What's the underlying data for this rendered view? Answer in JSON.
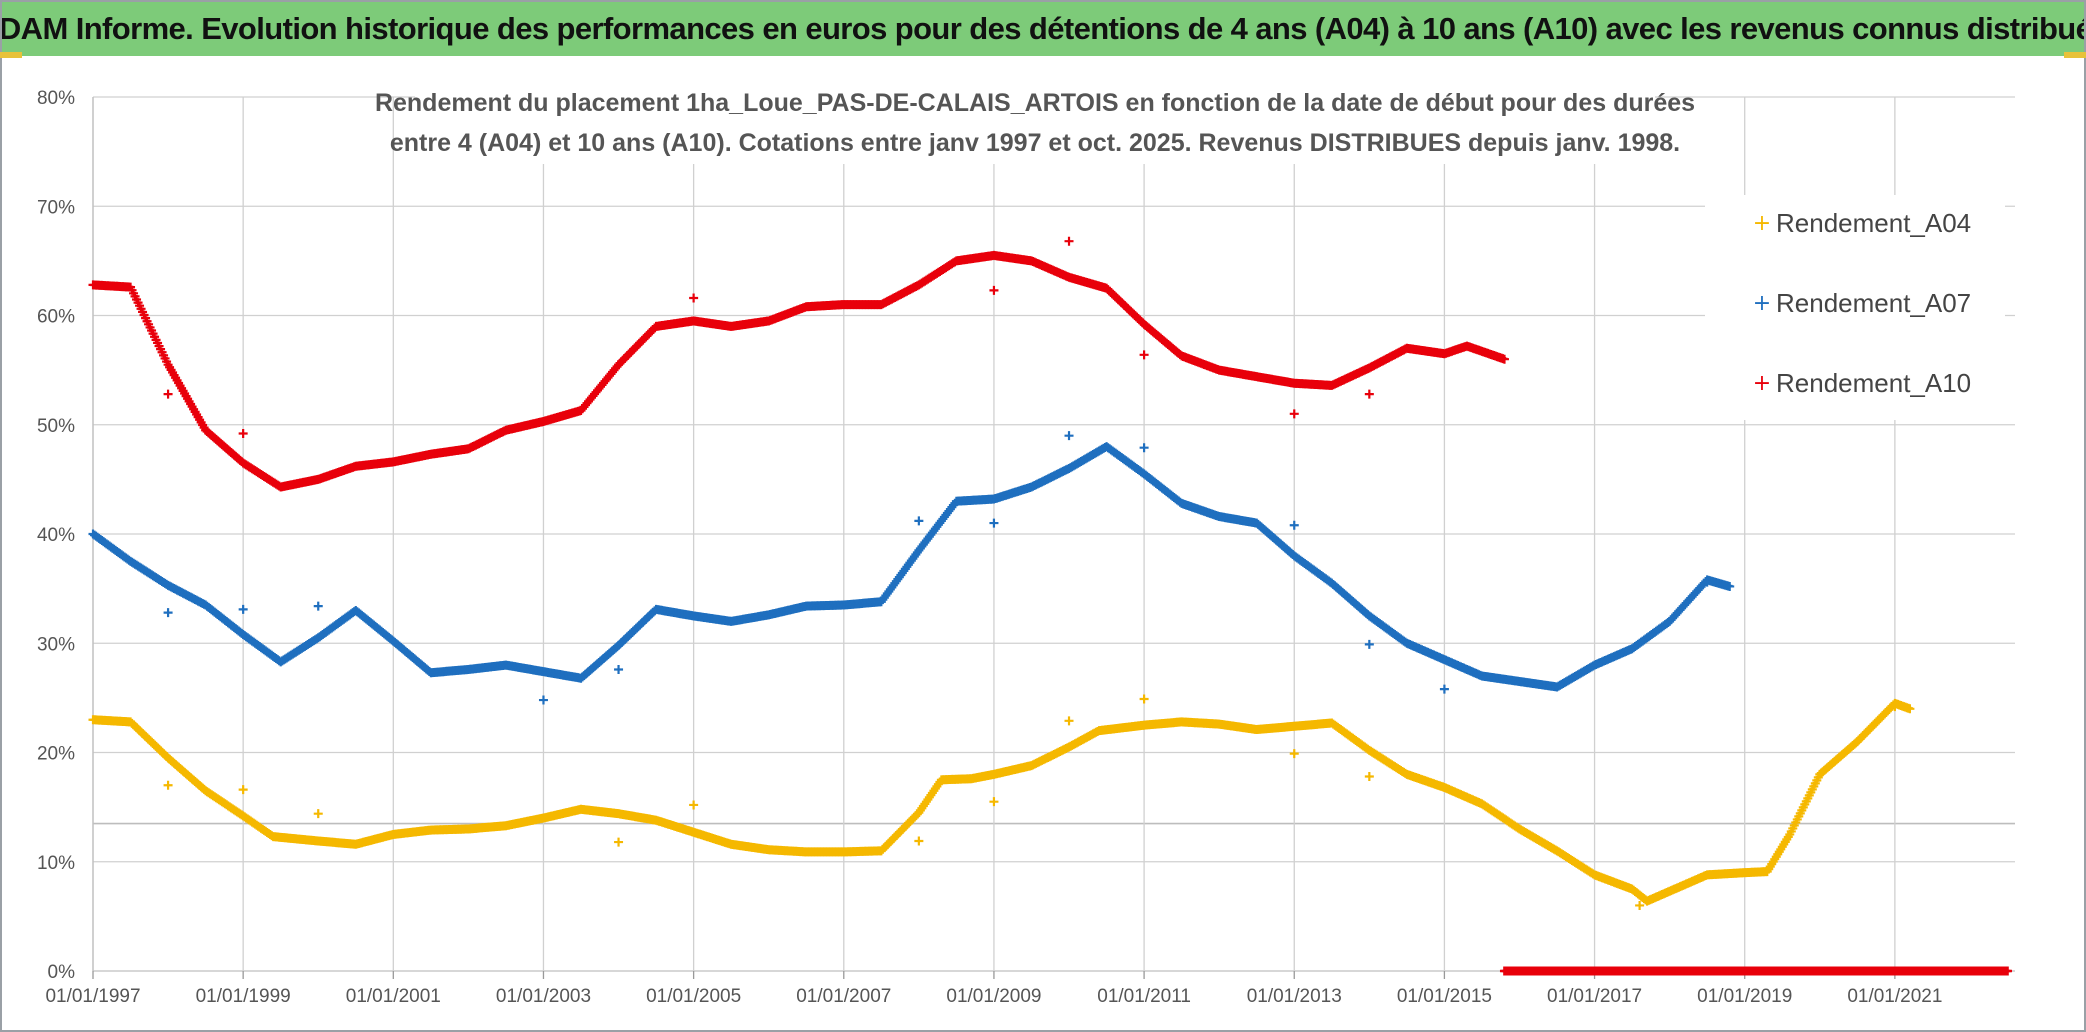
{
  "header": {
    "banner_title": "ADAM Informe. Evolution historique des performances en euros pour des détentions de 4 ans (A04) à 10 ans (A10) avec les revenus connus distribués"
  },
  "colors": {
    "banner_bg": "#7dcb79",
    "A04": "#f5b800",
    "A07": "#1f6fbf",
    "A10": "#e8000b",
    "grid": "#d0d0d0"
  },
  "chart_data": {
    "type": "scatter",
    "title_lines": [
      "Rendement du placement 1ha_Loue_PAS-DE-CALAIS_ARTOIS en fonction de la date de début pour des durées",
      "entre 4 (A04) et 10 ans (A10). Cotations entre janv 1997 et oct. 2025. Revenus DISTRIBUES depuis janv. 1998."
    ],
    "xlabel": "",
    "ylabel": "",
    "x_range": [
      1997.0,
      2022.6
    ],
    "ylim": [
      0,
      80
    ],
    "y_ticks": [
      "0%",
      "10%",
      "20%",
      "30%",
      "40%",
      "50%",
      "60%",
      "70%",
      "80%"
    ],
    "x_ticks": [
      "01/01/1997",
      "01/01/1999",
      "01/01/2001",
      "01/01/2003",
      "01/01/2005",
      "01/01/2007",
      "01/01/2009",
      "01/01/2011",
      "01/01/2013",
      "01/01/2015",
      "01/01/2017",
      "01/01/2019",
      "01/01/2021"
    ],
    "legend": {
      "position": "top-right",
      "entries": [
        "Rendement_A04",
        "Rendement_A07",
        "Rendement_A10"
      ]
    },
    "series": [
      {
        "name": "Rendement_A04",
        "key": "A04",
        "points": [
          [
            1997.0,
            23
          ],
          [
            1997.5,
            22.8
          ],
          [
            1998.0,
            19.5
          ],
          [
            1998.5,
            16.5
          ],
          [
            1999.0,
            14.2
          ],
          [
            1999.4,
            12.3
          ],
          [
            2000.0,
            11.9
          ],
          [
            2000.5,
            11.6
          ],
          [
            2001.0,
            12.5
          ],
          [
            2001.5,
            12.9
          ],
          [
            2002.0,
            13.0
          ],
          [
            2002.5,
            13.3
          ],
          [
            2003.0,
            14.0
          ],
          [
            2003.5,
            14.8
          ],
          [
            2004.0,
            14.4
          ],
          [
            2004.5,
            13.8
          ],
          [
            2005.0,
            12.7
          ],
          [
            2005.5,
            11.6
          ],
          [
            2006.0,
            11.1
          ],
          [
            2006.5,
            10.9
          ],
          [
            2007.0,
            10.9
          ],
          [
            2007.5,
            11.0
          ],
          [
            2008.0,
            14.5
          ],
          [
            2008.3,
            17.5
          ],
          [
            2008.7,
            17.6
          ],
          [
            2009.0,
            18.0
          ],
          [
            2009.5,
            18.8
          ],
          [
            2010.0,
            20.5
          ],
          [
            2010.4,
            22.0
          ],
          [
            2011.0,
            22.5
          ],
          [
            2011.5,
            22.8
          ],
          [
            2012.0,
            22.6
          ],
          [
            2012.5,
            22.1
          ],
          [
            2013.0,
            22.4
          ],
          [
            2013.5,
            22.7
          ],
          [
            2014.0,
            20.2
          ],
          [
            2014.5,
            18.0
          ],
          [
            2015.0,
            16.8
          ],
          [
            2015.5,
            15.3
          ],
          [
            2016.0,
            13.0
          ],
          [
            2016.5,
            11.0
          ],
          [
            2017.0,
            8.8
          ],
          [
            2017.5,
            7.5
          ],
          [
            2017.7,
            6.4
          ],
          [
            2018.0,
            7.3
          ],
          [
            2018.5,
            8.8
          ],
          [
            2019.0,
            9.0
          ],
          [
            2019.3,
            9.1
          ],
          [
            2019.6,
            12.5
          ],
          [
            2020.0,
            18.0
          ],
          [
            2020.5,
            21.0
          ],
          [
            2021.0,
            24.5
          ],
          [
            2021.2,
            24.0
          ]
        ],
        "outliers": [
          [
            1998.0,
            17.0
          ],
          [
            1999.0,
            16.6
          ],
          [
            2000.0,
            14.4
          ],
          [
            2004.0,
            11.8
          ],
          [
            2005.0,
            15.2
          ],
          [
            2008.0,
            11.9
          ],
          [
            2009.0,
            15.5
          ],
          [
            2010.0,
            22.9
          ],
          [
            2011.0,
            24.9
          ],
          [
            2013.0,
            19.9
          ],
          [
            2014.0,
            17.8
          ],
          [
            2017.6,
            6.0
          ],
          [
            2021.0,
            24.2
          ]
        ]
      },
      {
        "name": "Rendement_A07",
        "key": "A07",
        "points": [
          [
            1997.0,
            40.0
          ],
          [
            1997.5,
            37.5
          ],
          [
            1998.0,
            35.3
          ],
          [
            1998.5,
            33.5
          ],
          [
            1999.0,
            30.8
          ],
          [
            1999.5,
            28.3
          ],
          [
            2000.0,
            30.5
          ],
          [
            2000.5,
            33.0
          ],
          [
            2001.0,
            30.2
          ],
          [
            2001.5,
            27.3
          ],
          [
            2002.0,
            27.6
          ],
          [
            2002.5,
            28.0
          ],
          [
            2003.0,
            27.4
          ],
          [
            2003.5,
            26.8
          ],
          [
            2004.0,
            29.8
          ],
          [
            2004.5,
            33.1
          ],
          [
            2005.0,
            32.5
          ],
          [
            2005.5,
            32.0
          ],
          [
            2006.0,
            32.6
          ],
          [
            2006.5,
            33.4
          ],
          [
            2007.0,
            33.5
          ],
          [
            2007.5,
            33.8
          ],
          [
            2008.0,
            38.5
          ],
          [
            2008.5,
            43.0
          ],
          [
            2009.0,
            43.2
          ],
          [
            2009.5,
            44.3
          ],
          [
            2010.0,
            46.0
          ],
          [
            2010.5,
            48.0
          ],
          [
            2011.0,
            45.5
          ],
          [
            2011.5,
            42.8
          ],
          [
            2012.0,
            41.6
          ],
          [
            2012.5,
            41.0
          ],
          [
            2013.0,
            38.0
          ],
          [
            2013.5,
            35.5
          ],
          [
            2014.0,
            32.5
          ],
          [
            2014.5,
            30.0
          ],
          [
            2015.0,
            28.5
          ],
          [
            2015.5,
            27.0
          ],
          [
            2016.0,
            26.5
          ],
          [
            2016.5,
            26.0
          ],
          [
            2017.0,
            28.0
          ],
          [
            2017.5,
            29.5
          ],
          [
            2018.0,
            32.0
          ],
          [
            2018.5,
            35.8
          ],
          [
            2018.8,
            35.2
          ]
        ],
        "outliers": [
          [
            1998.0,
            32.8
          ],
          [
            1999.0,
            33.1
          ],
          [
            2000.0,
            33.4
          ],
          [
            2003.0,
            24.8
          ],
          [
            2004.0,
            27.6
          ],
          [
            2008.0,
            41.2
          ],
          [
            2009.0,
            41.0
          ],
          [
            2010.0,
            49.0
          ],
          [
            2011.0,
            47.9
          ],
          [
            2013.0,
            40.8
          ],
          [
            2014.0,
            29.9
          ],
          [
            2015.0,
            25.8
          ],
          [
            2018.5,
            35.6
          ]
        ]
      },
      {
        "name": "Rendement_A10",
        "key": "A10",
        "points": [
          [
            1997.0,
            62.8
          ],
          [
            1997.5,
            62.6
          ],
          [
            1998.0,
            55.5
          ],
          [
            1998.5,
            49.5
          ],
          [
            1999.0,
            46.5
          ],
          [
            1999.5,
            44.3
          ],
          [
            2000.0,
            45.0
          ],
          [
            2000.5,
            46.2
          ],
          [
            2001.0,
            46.6
          ],
          [
            2001.5,
            47.3
          ],
          [
            2002.0,
            47.8
          ],
          [
            2002.5,
            49.5
          ],
          [
            2003.0,
            50.3
          ],
          [
            2003.5,
            51.3
          ],
          [
            2004.0,
            55.5
          ],
          [
            2004.5,
            59.0
          ],
          [
            2005.0,
            59.5
          ],
          [
            2005.5,
            59.0
          ],
          [
            2006.0,
            59.5
          ],
          [
            2006.5,
            60.8
          ],
          [
            2007.0,
            61.0
          ],
          [
            2007.5,
            61.0
          ],
          [
            2008.0,
            62.8
          ],
          [
            2008.5,
            65.0
          ],
          [
            2009.0,
            65.5
          ],
          [
            2009.5,
            65.0
          ],
          [
            2010.0,
            63.5
          ],
          [
            2010.5,
            62.5
          ],
          [
            2011.0,
            59.2
          ],
          [
            2011.5,
            56.3
          ],
          [
            2012.0,
            55.0
          ],
          [
            2012.5,
            54.4
          ],
          [
            2013.0,
            53.8
          ],
          [
            2013.5,
            53.6
          ],
          [
            2014.0,
            55.2
          ],
          [
            2014.5,
            57.0
          ],
          [
            2015.0,
            56.5
          ],
          [
            2015.3,
            57.2
          ],
          [
            2015.8,
            56.0
          ]
        ],
        "outliers": [
          [
            1998.0,
            52.8
          ],
          [
            1999.0,
            49.2
          ],
          [
            2005.0,
            61.6
          ],
          [
            2009.0,
            62.3
          ],
          [
            2010.0,
            66.8
          ],
          [
            2011.0,
            56.4
          ],
          [
            2013.0,
            51.0
          ],
          [
            2014.0,
            52.8
          ]
        ],
        "zero_segment": [
          2015.8,
          2022.5
        ]
      }
    ]
  }
}
